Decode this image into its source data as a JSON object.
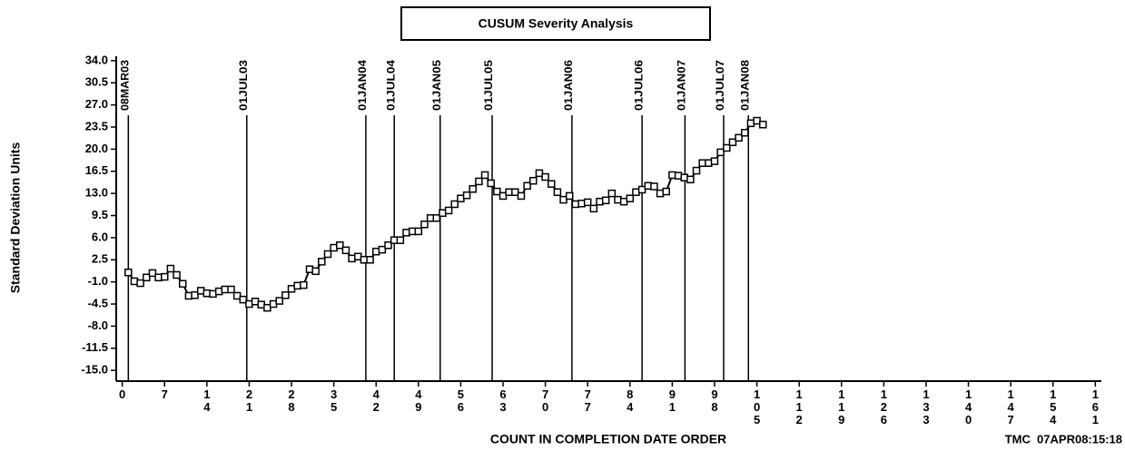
{
  "chart_data": {
    "type": "line",
    "title": "CUSUM Severity Analysis",
    "x_label": "COUNT IN COMPLETION DATE ORDER",
    "y_label": "Standard Deviation Units",
    "footer": "TMC  07APR08:15:18",
    "x": [
      1,
      2,
      3,
      4,
      5,
      6,
      7,
      8,
      9,
      10,
      11,
      12,
      13,
      14,
      15,
      16,
      17,
      18,
      19,
      20,
      21,
      22,
      23,
      24,
      25,
      26,
      27,
      28,
      29,
      30,
      31,
      32,
      33,
      34,
      35,
      36,
      37,
      38,
      39,
      40,
      41,
      42,
      43,
      44,
      45,
      46,
      47,
      48,
      49,
      50,
      51,
      52,
      53,
      54,
      55,
      56,
      57,
      58,
      59,
      60,
      61,
      62,
      63,
      64,
      65,
      66,
      67,
      68,
      69,
      70,
      71,
      72,
      73,
      74,
      75,
      76,
      77,
      78,
      79,
      80,
      81,
      82,
      83,
      84,
      85,
      86,
      87,
      88,
      89,
      90,
      91,
      92,
      93,
      94,
      95,
      96,
      97,
      98,
      99,
      100,
      101,
      102,
      103,
      104,
      105,
      106
    ],
    "series": [
      {
        "color": "#000000",
        "values": [
          0.5,
          -0.9,
          -1.2,
          -0.3,
          0.4,
          -0.3,
          -0.2,
          1.1,
          0.1,
          -1.3,
          -3.2,
          -3.1,
          -2.4,
          -2.8,
          -2.9,
          -2.5,
          -2.2,
          -2.2,
          -3.2,
          -3.8,
          -4.5,
          -4.1,
          -4.6,
          -5.1,
          -4.5,
          -4.0,
          -3.1,
          -2.1,
          -1.6,
          -1.5,
          1.0,
          0.7,
          2.2,
          3.4,
          4.4,
          4.8,
          4.0,
          2.7,
          3.0,
          2.5,
          2.5,
          3.8,
          4.1,
          4.8,
          5.6,
          5.6,
          6.8,
          7.0,
          7.0,
          8.1,
          9.1,
          9.1,
          9.9,
          10.3,
          11.3,
          12.2,
          12.7,
          13.7,
          14.9,
          15.9,
          14.6,
          13.3,
          12.6,
          13.2,
          13.2,
          12.6,
          14.2,
          15.0,
          16.2,
          15.6,
          14.5,
          13.2,
          12.0,
          12.6,
          11.3,
          11.4,
          11.6,
          10.6,
          11.7,
          11.9,
          13.0,
          12.0,
          11.7,
          12.2,
          13.2,
          13.6,
          14.2,
          14.1,
          13.0,
          13.3,
          15.9,
          15.8,
          15.5,
          15.2,
          16.6,
          17.8,
          17.8,
          18.1,
          19.5,
          20.2,
          21.1,
          21.8,
          22.6,
          24.1,
          24.5,
          23.9
        ]
      }
    ],
    "reference_lines": [
      {
        "x": 1,
        "label": "08MAR03"
      },
      {
        "x": 20.6,
        "label": "01JUL03"
      },
      {
        "x": 40.3,
        "label": "01JAN04"
      },
      {
        "x": 45.0,
        "label": "01JUL04"
      },
      {
        "x": 52.6,
        "label": "01JAN05"
      },
      {
        "x": 61.2,
        "label": "01JUL05"
      },
      {
        "x": 74.4,
        "label": "01JAN06"
      },
      {
        "x": 86.0,
        "label": "01JUL06"
      },
      {
        "x": 93.1,
        "label": "01JAN07"
      },
      {
        "x": 99.5,
        "label": "01JUL07"
      },
      {
        "x": 103.6,
        "label": "01JAN08"
      }
    ],
    "xlim": [
      -1,
      162
    ],
    "xticks": [
      0,
      7,
      14,
      21,
      28,
      35,
      42,
      49,
      56,
      63,
      70,
      77,
      84,
      91,
      98,
      105,
      112,
      119,
      126,
      133,
      140,
      147,
      154,
      161
    ],
    "ylim": [
      -16.7,
      34.7
    ],
    "yticks": [
      {
        "value": -15,
        "label": "-15.0"
      },
      {
        "value": -11.5,
        "label": "-11.5"
      },
      {
        "value": -8,
        "label": "-8.0"
      },
      {
        "value": -4.5,
        "label": "-4.5"
      },
      {
        "value": -1,
        "label": "-1.0"
      },
      {
        "value": 2.5,
        "label": "2.5"
      },
      {
        "value": 6,
        "label": "6.0"
      },
      {
        "value": 9.5,
        "label": "9.5"
      },
      {
        "value": 13,
        "label": "13.0"
      },
      {
        "value": 16.5,
        "label": "16.5"
      },
      {
        "value": 20,
        "label": "20.0"
      },
      {
        "value": 23.5,
        "label": "23.5"
      },
      {
        "value": 27,
        "label": "27.0"
      },
      {
        "value": 30.5,
        "label": "30.5"
      },
      {
        "value": 34,
        "label": "34.0"
      }
    ]
  }
}
